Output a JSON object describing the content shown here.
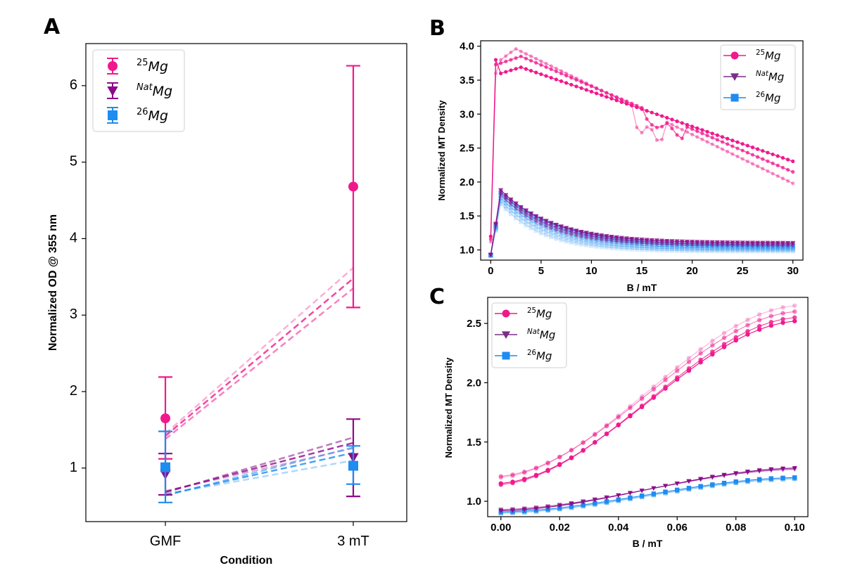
{
  "colors": {
    "mg25": "#f0198c",
    "natmg": "#8b0c88",
    "mg26": "#1e8cf0"
  },
  "chart_data": [
    {
      "panel": "A",
      "type": "scatter",
      "xlabel": "Condition",
      "ylabel": "Normalized OD @ 355 nm",
      "categories": [
        "GMF",
        "3 mT"
      ],
      "ylim": [
        0.3,
        6.55
      ],
      "yticks": [
        1,
        2,
        3,
        4,
        5,
        6
      ],
      "legend": "top-left",
      "series": [
        {
          "name": "25Mg",
          "iso": "25",
          "label": "Mg",
          "marker": "circle",
          "color": "#f0198c",
          "mean": [
            1.65,
            4.68
          ],
          "err_low": [
            1.12,
            3.1
          ],
          "err_high": [
            2.19,
            6.26
          ],
          "replicates": [
            [
              1.38,
              3.35
            ],
            [
              1.42,
              3.48
            ],
            [
              1.45,
              3.62
            ]
          ]
        },
        {
          "name": "NatMg",
          "iso": "Nat",
          "label": "Mg",
          "marker": "triangle-down",
          "color": "#8b0c88",
          "mean": [
            0.92,
            1.14
          ],
          "err_low": [
            0.65,
            0.63
          ],
          "err_high": [
            1.19,
            1.64
          ],
          "replicates": [
            [
              0.68,
              1.4
            ],
            [
              0.69,
              1.33
            ],
            [
              0.7,
              1.26
            ]
          ]
        },
        {
          "name": "26Mg",
          "iso": "26",
          "label": "Mg",
          "marker": "square",
          "color": "#1e8cf0",
          "mean": [
            1.01,
            1.03
          ],
          "err_low": [
            0.55,
            0.79
          ],
          "err_high": [
            1.48,
            1.29
          ],
          "replicates": [
            [
              0.64,
              1.27
            ],
            [
              0.65,
              1.2
            ],
            [
              0.66,
              1.1
            ]
          ]
        }
      ]
    },
    {
      "panel": "B",
      "type": "line",
      "xlabel": "B / mT",
      "ylabel": "Normalized MT Density",
      "xlim": [
        -1,
        31
      ],
      "ylim": [
        0.85,
        4.08
      ],
      "xticks": [
        0,
        5,
        10,
        15,
        20,
        25,
        30
      ],
      "yticks": [
        "1.0",
        "1.5",
        "2.0",
        "2.5",
        "3.0",
        "3.5",
        "4.0"
      ],
      "legend": "top-right",
      "series": [
        {
          "name": "25Mg",
          "iso": "25",
          "label": "Mg",
          "marker": "circle",
          "color": "#f0198c",
          "points": [
            [
              0,
              1.15
            ],
            [
              0.5,
              3.73
            ],
            [
              1,
              3.8
            ],
            [
              1.5,
              3.68
            ],
            [
              3,
              3.7
            ],
            [
              7,
              3.63
            ],
            [
              12,
              3.35
            ],
            [
              17,
              2.98
            ],
            [
              22,
              2.77
            ],
            [
              30,
              2.31
            ]
          ]
        }
      ]
    },
    {
      "panel": "C",
      "type": "line",
      "xlabel": "B / mT",
      "ylabel": "Normalized MT Density",
      "xlim": [
        -0.0045,
        0.1045
      ],
      "ylim": [
        0.87,
        2.72
      ],
      "xticks": [
        "0.00",
        "0.02",
        "0.04",
        "0.06",
        "0.08",
        "0.10"
      ],
      "yticks": [
        "1.0",
        "1.5",
        "2.0",
        "2.5"
      ],
      "legend": "top-left",
      "series": [
        {
          "name": "25Mg",
          "iso": "25",
          "label": "Mg",
          "marker": "circle",
          "color": "#f0198c",
          "points": [
            [
              0,
              1.15
            ],
            [
              0.02,
              1.25
            ],
            [
              0.04,
              1.57
            ],
            [
              0.06,
              1.96
            ],
            [
              0.08,
              2.29
            ],
            [
              0.1,
              2.52
            ]
          ]
        }
      ]
    }
  ]
}
